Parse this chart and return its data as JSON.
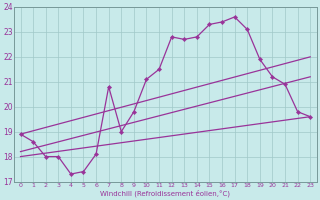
{
  "xlabel": "Windchill (Refroidissement éolien,°C)",
  "background_color": "#c8eaea",
  "line_color": "#993399",
  "grid_color": "#a0c8c8",
  "xlim": [
    -0.5,
    23.5
  ],
  "ylim": [
    17,
    24
  ],
  "yticks": [
    17,
    18,
    19,
    20,
    21,
    22,
    23,
    24
  ],
  "xticks": [
    0,
    1,
    2,
    3,
    4,
    5,
    6,
    7,
    8,
    9,
    10,
    11,
    12,
    13,
    14,
    15,
    16,
    17,
    18,
    19,
    20,
    21,
    22,
    23
  ],
  "series": [
    {
      "x": [
        0,
        1,
        2,
        3,
        4,
        5,
        6,
        7,
        8,
        9,
        10,
        11,
        12,
        13,
        14,
        15,
        16,
        17,
        18,
        19,
        20,
        21,
        22,
        23
      ],
      "y": [
        18.9,
        18.6,
        18.0,
        18.0,
        17.3,
        17.4,
        18.1,
        20.8,
        19.0,
        19.8,
        21.1,
        21.5,
        22.8,
        22.7,
        22.8,
        23.3,
        23.4,
        23.6,
        23.1,
        21.9,
        21.2,
        20.9,
        19.8,
        19.6
      ],
      "marker": true,
      "lw": 0.9
    },
    {
      "x": [
        0,
        23
      ],
      "y": [
        18.9,
        22.0
      ],
      "marker": false,
      "lw": 0.9
    },
    {
      "x": [
        0,
        23
      ],
      "y": [
        18.2,
        21.2
      ],
      "marker": false,
      "lw": 0.9
    },
    {
      "x": [
        0,
        23
      ],
      "y": [
        18.0,
        19.6
      ],
      "marker": false,
      "lw": 0.9
    }
  ]
}
